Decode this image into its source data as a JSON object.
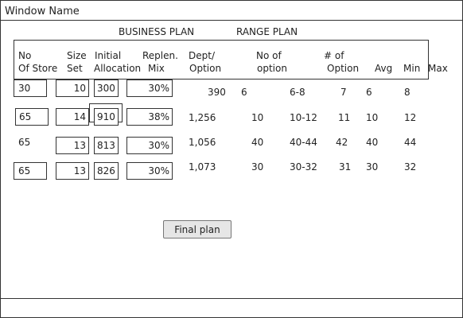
{
  "window": {
    "title": "Window Name"
  },
  "sections": {
    "business_plan": "BUSINESS PLAN",
    "range_plan": "RANGE PLAN"
  },
  "headers": {
    "no_of_store": [
      "No",
      "Of Store"
    ],
    "size_set": [
      "Size",
      "Set"
    ],
    "initial_allocation": [
      "Initial",
      "Allocation"
    ],
    "replen_mix": [
      "Replen.",
      "Mix"
    ],
    "dept_option": [
      "Dept/",
      "Option"
    ],
    "no_of_option": [
      "No of",
      "option"
    ],
    "num_of_option": [
      "# of",
      "Option"
    ],
    "avg": "Avg",
    "min": "Min",
    "max": "Max"
  },
  "rows": [
    {
      "no_of_store": "30",
      "size_set": "10",
      "initial_allocation": "300",
      "replen_mix": "30%",
      "dept_option": "390",
      "no_of_option": "6",
      "option_range": "6-8",
      "num_of_option": "7",
      "avg": "6",
      "min": "8"
    },
    {
      "no_of_store": "65",
      "size_set": "14",
      "initial_allocation": "910",
      "replen_mix": "38%",
      "dept_option": "1,256",
      "no_of_option": "10",
      "option_range": "10-12",
      "num_of_option": "11",
      "avg": "10",
      "min": "12"
    },
    {
      "no_of_store": "65",
      "size_set": "13",
      "initial_allocation": "813",
      "replen_mix": "30%",
      "dept_option": "1,056",
      "no_of_option": "40",
      "option_range": "40-44",
      "num_of_option": "42",
      "avg": "40",
      "min": "44"
    },
    {
      "no_of_store": "65",
      "size_set": "13",
      "initial_allocation": "826",
      "replen_mix": "30%",
      "dept_option": "1,073",
      "no_of_option": "30",
      "option_range": "30-32",
      "num_of_option": "31",
      "avg": "30",
      "min": "32"
    }
  ],
  "actions": {
    "final_plan": "Final plan"
  }
}
